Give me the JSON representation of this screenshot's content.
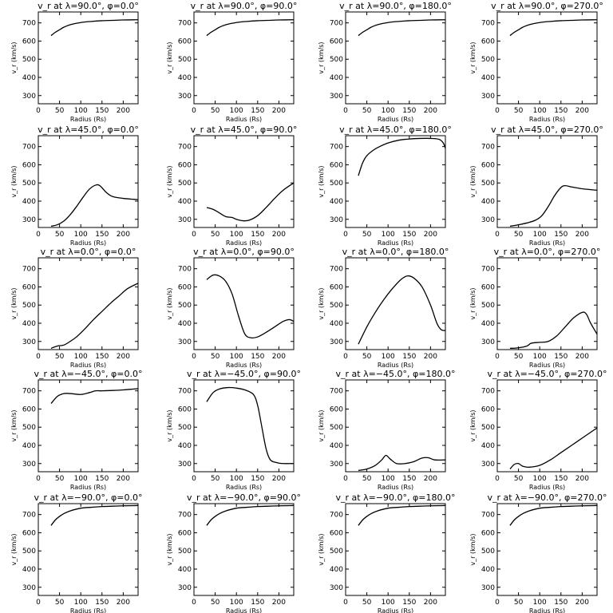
{
  "chart_data": [
    {
      "type": "line",
      "title": "v_r at λ=90.0°, φ=0.0°",
      "xlabel": "Radius (Rs)",
      "ylabel": "v_r (km/s)",
      "xlim": [
        0,
        235
      ],
      "ylim": [
        255,
        760
      ],
      "x": [
        30,
        40,
        50,
        60,
        75,
        100,
        125,
        150,
        175,
        200,
        225,
        235
      ],
      "y": [
        630,
        648,
        662,
        676,
        690,
        702,
        708,
        712,
        714,
        716,
        717,
        717
      ]
    },
    {
      "type": "line",
      "title": "v_r at λ=90.0°, φ=90.0°",
      "xlabel": "Radius (Rs)",
      "ylabel": "v_r (km/s)",
      "xlim": [
        0,
        235
      ],
      "ylim": [
        255,
        760
      ],
      "x": [
        30,
        40,
        50,
        60,
        75,
        100,
        125,
        150,
        175,
        200,
        225,
        235
      ],
      "y": [
        630,
        648,
        662,
        676,
        690,
        702,
        708,
        712,
        714,
        716,
        717,
        717
      ]
    },
    {
      "type": "line",
      "title": "v_r at λ=90.0°, φ=180.0°",
      "xlabel": "Radius (Rs)",
      "ylabel": "v_r (km/s)",
      "xlim": [
        0,
        235
      ],
      "ylim": [
        255,
        760
      ],
      "x": [
        30,
        40,
        50,
        60,
        75,
        100,
        125,
        150,
        175,
        200,
        225,
        235
      ],
      "y": [
        630,
        648,
        662,
        676,
        690,
        702,
        708,
        712,
        714,
        716,
        717,
        717
      ]
    },
    {
      "type": "line",
      "title": "v_r at λ=90.0°, φ=270.0°",
      "xlabel": "Radius (Rs)",
      "ylabel": "v_r (km/s)",
      "xlim": [
        0,
        235
      ],
      "ylim": [
        255,
        760
      ],
      "x": [
        30,
        40,
        50,
        60,
        75,
        100,
        125,
        150,
        175,
        200,
        225,
        235
      ],
      "y": [
        630,
        648,
        662,
        676,
        690,
        702,
        708,
        712,
        714,
        716,
        717,
        717
      ]
    },
    {
      "type": "line",
      "title": "v_r at λ=45.0°, φ=0.0°",
      "xlabel": "Radius (Rs)",
      "ylabel": "v_r (km/s)",
      "xlim": [
        0,
        235
      ],
      "ylim": [
        255,
        760
      ],
      "x": [
        30,
        45,
        60,
        75,
        90,
        105,
        120,
        135,
        145,
        160,
        175,
        200,
        225,
        235
      ],
      "y": [
        262,
        270,
        290,
        325,
        370,
        420,
        465,
        488,
        485,
        448,
        425,
        415,
        410,
        408
      ]
    },
    {
      "type": "line",
      "title": "v_r at λ=45.0°, φ=90.0°",
      "xlabel": "Radius (Rs)",
      "ylabel": "v_r (km/s)",
      "xlim": [
        0,
        235
      ],
      "ylim": [
        255,
        760
      ],
      "x": [
        30,
        45,
        60,
        75,
        90,
        100,
        115,
        130,
        150,
        170,
        190,
        210,
        235
      ],
      "y": [
        365,
        355,
        335,
        315,
        310,
        300,
        292,
        295,
        320,
        365,
        415,
        460,
        500
      ]
    },
    {
      "type": "line",
      "title": "v_r at λ=45.0°, φ=180.0°",
      "xlabel": "Radius (Rs)",
      "ylabel": "v_r (km/s)",
      "xlim": [
        0,
        235
      ],
      "ylim": [
        255,
        760
      ],
      "x": [
        30,
        40,
        50,
        65,
        80,
        100,
        125,
        150,
        175,
        200,
        220,
        230,
        235
      ],
      "y": [
        540,
        610,
        650,
        680,
        700,
        720,
        735,
        742,
        745,
        745,
        740,
        720,
        690
      ]
    },
    {
      "type": "line",
      "title": "v_r at λ=45.0°, φ=270.0°",
      "xlabel": "Radius (Rs)",
      "ylabel": "v_r (km/s)",
      "xlim": [
        0,
        235
      ],
      "ylim": [
        255,
        760
      ],
      "x": [
        30,
        50,
        70,
        90,
        105,
        120,
        135,
        150,
        160,
        175,
        200,
        225,
        235
      ],
      "y": [
        262,
        270,
        280,
        295,
        320,
        370,
        430,
        475,
        485,
        478,
        468,
        462,
        460
      ]
    },
    {
      "type": "line",
      "title": "v_r at λ=0.0°, φ=0.0°",
      "xlabel": "Radius (Rs)",
      "ylabel": "v_r (km/s)",
      "xlim": [
        0,
        235
      ],
      "ylim": [
        255,
        760
      ],
      "x": [
        30,
        45,
        60,
        75,
        90,
        110,
        130,
        150,
        170,
        190,
        210,
        235
      ],
      "y": [
        262,
        275,
        280,
        300,
        325,
        370,
        420,
        465,
        510,
        550,
        590,
        620
      ]
    },
    {
      "type": "line",
      "title": "v_r at λ=0.0°, φ=90.0°",
      "xlabel": "Radius (Rs)",
      "ylabel": "v_r (km/s)",
      "xlim": [
        0,
        235
      ],
      "ylim": [
        255,
        760
      ],
      "x": [
        30,
        45,
        60,
        75,
        90,
        105,
        120,
        135,
        150,
        170,
        190,
        210,
        225,
        235
      ],
      "y": [
        640,
        665,
        660,
        630,
        560,
        440,
        340,
        320,
        325,
        350,
        380,
        410,
        420,
        410
      ]
    },
    {
      "type": "line",
      "title": "v_r at λ=0.0°, φ=180.0°",
      "xlabel": "Radius (Rs)",
      "ylabel": "v_r (km/s)",
      "xlim": [
        0,
        235
      ],
      "ylim": [
        255,
        760
      ],
      "x": [
        30,
        50,
        70,
        90,
        110,
        130,
        145,
        160,
        180,
        200,
        215,
        225,
        235
      ],
      "y": [
        285,
        380,
        460,
        530,
        590,
        640,
        660,
        650,
        600,
        500,
        400,
        365,
        360
      ]
    },
    {
      "type": "line",
      "title": "v_r at λ=0.0°, φ=270.0°",
      "xlabel": "Radius (Rs)",
      "ylabel": "v_r (km/s)",
      "xlim": [
        0,
        235
      ],
      "ylim": [
        255,
        760
      ],
      "x": [
        30,
        50,
        70,
        80,
        100,
        120,
        140,
        160,
        180,
        200,
        210,
        220,
        235
      ],
      "y": [
        262,
        265,
        275,
        290,
        295,
        300,
        330,
        380,
        430,
        460,
        450,
        400,
        340
      ]
    },
    {
      "type": "line",
      "title": "v_r at λ=−45.0°, φ=0.0°",
      "xlabel": "Radius (Rs)",
      "ylabel": "v_r (km/s)",
      "xlim": [
        0,
        235
      ],
      "ylim": [
        255,
        760
      ],
      "x": [
        30,
        45,
        60,
        75,
        100,
        120,
        135,
        150,
        175,
        200,
        225,
        235
      ],
      "y": [
        630,
        670,
        685,
        685,
        680,
        690,
        700,
        700,
        702,
        705,
        710,
        712
      ]
    },
    {
      "type": "line",
      "title": "v_r at λ=−45.0°, φ=90.0°",
      "xlabel": "Radius (Rs)",
      "ylabel": "v_r (km/s)",
      "xlim": [
        0,
        235
      ],
      "ylim": [
        255,
        760
      ],
      "x": [
        30,
        45,
        60,
        80,
        100,
        120,
        140,
        150,
        160,
        170,
        180,
        195,
        210,
        235
      ],
      "y": [
        640,
        690,
        710,
        718,
        715,
        705,
        680,
        620,
        500,
        380,
        320,
        305,
        300,
        300
      ]
    },
    {
      "type": "line",
      "title": "v_r at λ=−45.0°, φ=180.0°",
      "xlabel": "Radius (Rs)",
      "ylabel": "v_r (km/s)",
      "xlim": [
        0,
        235
      ],
      "ylim": [
        255,
        760
      ],
      "x": [
        30,
        50,
        70,
        85,
        95,
        105,
        120,
        140,
        160,
        180,
        195,
        210,
        235
      ],
      "y": [
        262,
        270,
        290,
        320,
        345,
        325,
        300,
        300,
        310,
        330,
        332,
        320,
        320
      ]
    },
    {
      "type": "line",
      "title": "v_r at λ=−45.0°, φ=270.0°",
      "xlabel": "Radius (Rs)",
      "ylabel": "v_r (km/s)",
      "xlim": [
        0,
        235
      ],
      "ylim": [
        255,
        760
      ],
      "x": [
        30,
        40,
        50,
        60,
        75,
        100,
        125,
        150,
        175,
        200,
        225,
        235
      ],
      "y": [
        270,
        295,
        300,
        285,
        280,
        290,
        320,
        360,
        400,
        440,
        480,
        495
      ]
    },
    {
      "type": "line",
      "title": "v_r at λ=−90.0°, φ=0.0°",
      "xlabel": "Radius (Rs)",
      "ylabel": "v_r (km/s)",
      "xlim": [
        0,
        235
      ],
      "ylim": [
        255,
        760
      ],
      "x": [
        30,
        40,
        50,
        60,
        75,
        100,
        125,
        150,
        175,
        200,
        225,
        235
      ],
      "y": [
        640,
        670,
        690,
        705,
        720,
        735,
        740,
        744,
        746,
        748,
        749,
        750
      ]
    },
    {
      "type": "line",
      "title": "v_r at λ=−90.0°, φ=90.0°",
      "xlabel": "Radius (Rs)",
      "ylabel": "v_r (km/s)",
      "xlim": [
        0,
        235
      ],
      "ylim": [
        255,
        760
      ],
      "x": [
        30,
        40,
        50,
        60,
        75,
        100,
        125,
        150,
        175,
        200,
        225,
        235
      ],
      "y": [
        640,
        670,
        690,
        705,
        720,
        735,
        740,
        744,
        746,
        748,
        749,
        750
      ]
    },
    {
      "type": "line",
      "title": "v_r at λ=−90.0°, φ=180.0°",
      "xlabel": "Radius (Rs)",
      "ylabel": "v_r (km/s)",
      "xlim": [
        0,
        235
      ],
      "ylim": [
        255,
        760
      ],
      "x": [
        30,
        40,
        50,
        60,
        75,
        100,
        125,
        150,
        175,
        200,
        225,
        235
      ],
      "y": [
        640,
        670,
        690,
        705,
        720,
        735,
        740,
        744,
        746,
        748,
        749,
        750
      ]
    },
    {
      "type": "line",
      "title": "v_r at λ=−90.0°, φ=270.0°",
      "xlabel": "Radius (Rs)",
      "ylabel": "v_r (km/s)",
      "xlim": [
        0,
        235
      ],
      "ylim": [
        255,
        760
      ],
      "x": [
        30,
        40,
        50,
        60,
        75,
        100,
        125,
        150,
        175,
        200,
        225,
        235
      ],
      "y": [
        640,
        670,
        690,
        705,
        720,
        735,
        740,
        744,
        746,
        748,
        749,
        750
      ]
    }
  ],
  "axes": {
    "x_ticks": [
      0,
      50,
      100,
      150,
      200
    ],
    "y_ticks": [
      300,
      400,
      500,
      600,
      700
    ]
  }
}
